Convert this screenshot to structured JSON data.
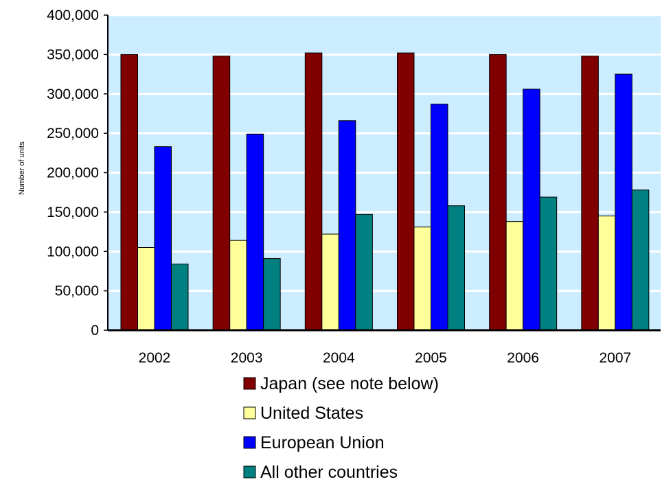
{
  "chart_data": {
    "type": "bar",
    "title": "",
    "xlabel": "",
    "ylabel": "Number of units",
    "ylim": [
      0,
      400000
    ],
    "yticks": [
      0,
      50000,
      100000,
      150000,
      200000,
      250000,
      300000,
      350000,
      400000
    ],
    "ytick_labels": [
      "0",
      "50,000",
      "100,000",
      "150,000",
      "200,000",
      "250,000",
      "300,000",
      "350,000",
      "400,000"
    ],
    "grid": true,
    "legend_position": "bottom",
    "categories": [
      "2002",
      "2003",
      "2004",
      "2005",
      "2006",
      "2007"
    ],
    "series": [
      {
        "name": "Japan (see note below)",
        "color": "#800000",
        "values": [
          350000,
          348000,
          352000,
          352000,
          350000,
          348000
        ]
      },
      {
        "name": "United States",
        "color": "#FFFF99",
        "values": [
          105000,
          114000,
          122000,
          131000,
          138000,
          145000
        ]
      },
      {
        "name": "European Union",
        "color": "#0000FF",
        "values": [
          233000,
          249000,
          266000,
          287000,
          306000,
          325000
        ]
      },
      {
        "name": "All other countries",
        "color": "#008080",
        "values": [
          84000,
          91000,
          147000,
          158000,
          169000,
          178000
        ]
      }
    ],
    "plot_background": "#CCECFF"
  }
}
